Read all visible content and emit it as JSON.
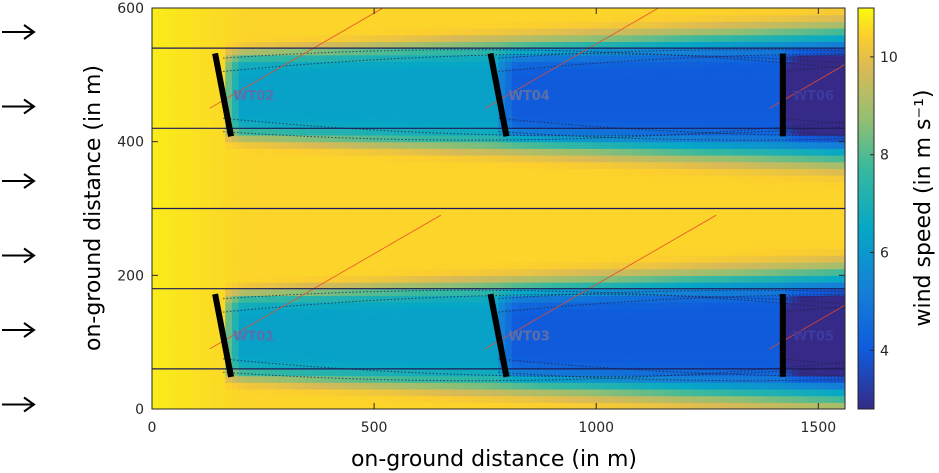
{
  "chart_data": {
    "type": "heatmap",
    "title": "",
    "xlabel": "on-ground distance (in m)",
    "ylabel": "on-ground distance (in m)",
    "colorbar_label": "wind speed (in m s⁻¹)",
    "xlim": [
      0,
      1560
    ],
    "ylim": [
      0,
      600
    ],
    "clim": [
      2.8,
      11.0
    ],
    "x_ticks": [
      0,
      500,
      1000,
      1500
    ],
    "y_ticks": [
      0,
      200,
      400,
      600
    ],
    "colorbar_ticks": [
      4,
      6,
      8,
      10
    ],
    "colormap": "parula",
    "inflow_direction": "left-to-right",
    "inflow_arrow_count": 6,
    "row_boundaries_y": [
      60,
      180,
      300,
      420,
      540
    ],
    "free_stream_speed": 10.5,
    "turbines": [
      {
        "label": "WT01",
        "x": 160,
        "y": 110,
        "hub_speed": 10.5
      },
      {
        "label": "WT02",
        "x": 160,
        "y": 470,
        "hub_speed": 10.5
      },
      {
        "label": "WT03",
        "x": 780,
        "y": 110,
        "hub_speed": 6.0
      },
      {
        "label": "WT04",
        "x": 780,
        "y": 470,
        "hub_speed": 6.0
      },
      {
        "label": "WT05",
        "x": 1420,
        "y": 110,
        "hub_speed": 3.8
      },
      {
        "label": "WT06",
        "x": 1420,
        "y": 470,
        "hub_speed": 3.8
      }
    ]
  },
  "colors": {
    "axis": "#262626",
    "row_line": "#1c1c5a",
    "turbine_bar": "#000000",
    "red_ray": "#e84a2a",
    "streamline": "#23234a"
  }
}
